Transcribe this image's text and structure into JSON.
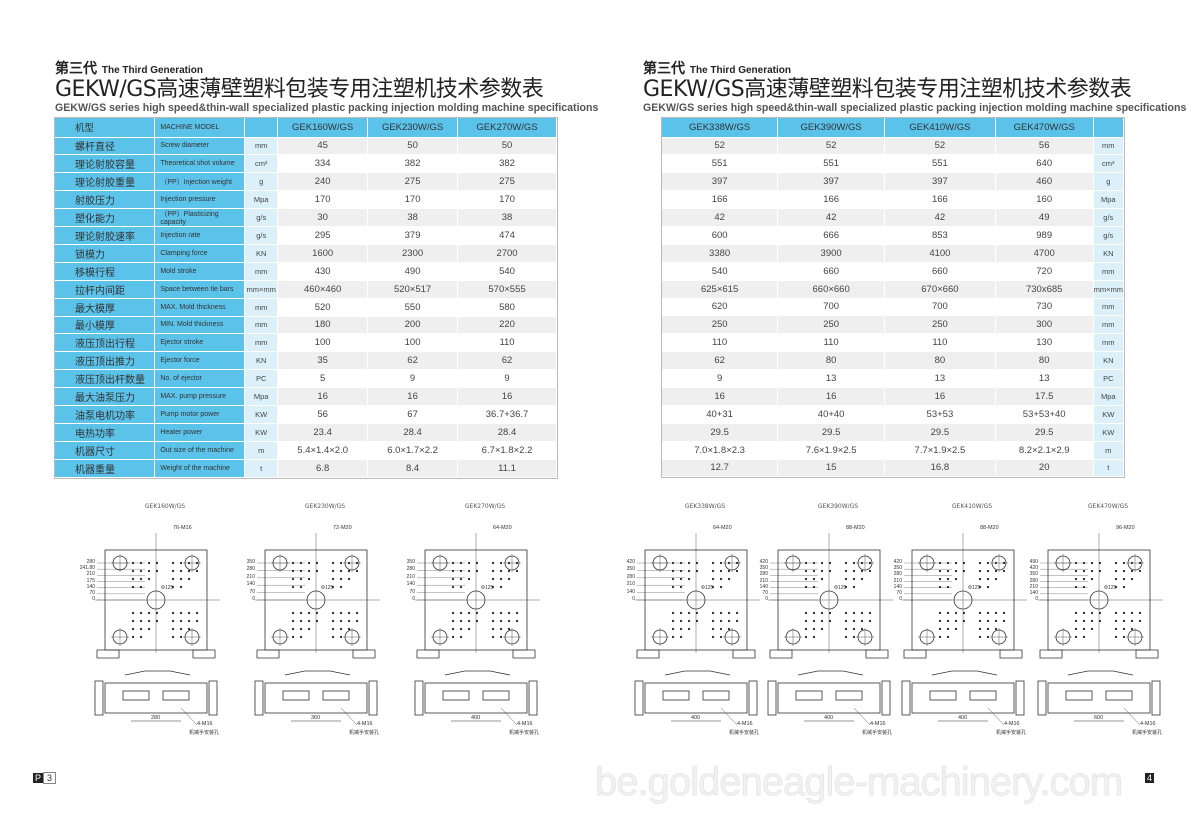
{
  "header": {
    "generation_zh": "第三代",
    "generation_en": "The Third Generation",
    "title": "GEKW/GS高速薄壁塑料包装专用注塑机技术参数表",
    "subtitle": "GEKW/GS series high speed&thin-wall specialized plastic packing injection molding machine specifications"
  },
  "left_table": {
    "header": {
      "zh": "机型",
      "en": "MACHINE MODEL",
      "unit": "",
      "models": [
        "GEK160W/GS",
        "GEK230W/GS",
        "GEK270W/GS"
      ]
    },
    "rows": [
      {
        "zh": "螺杆直径",
        "en": "Screw diameter",
        "unit": "mm",
        "values": [
          "45",
          "50",
          "50"
        ]
      },
      {
        "zh": "理论射胶容量",
        "en": "Theoretical shot volume",
        "unit": "cm³",
        "values": [
          "334",
          "382",
          "382"
        ]
      },
      {
        "zh": "理论射胶重量",
        "en": "（PP）Injection weight",
        "unit": "g",
        "values": [
          "240",
          "275",
          "275"
        ]
      },
      {
        "zh": "射胶压力",
        "en": "Injection pressure",
        "unit": "Mpa",
        "values": [
          "170",
          "170",
          "170"
        ]
      },
      {
        "zh": "塑化能力",
        "en": "（PP）Plasticizing capacity",
        "unit": "g/s",
        "values": [
          "30",
          "38",
          "38"
        ]
      },
      {
        "zh": "理论射胶速率",
        "en": "Injection rate",
        "unit": "g/s",
        "values": [
          "295",
          "379",
          "474"
        ]
      },
      {
        "zh": "锁模力",
        "en": "Clamping force",
        "unit": "KN",
        "values": [
          "1600",
          "2300",
          "2700"
        ]
      },
      {
        "zh": "移模行程",
        "en": "Mold stroke",
        "unit": "mm",
        "values": [
          "430",
          "490",
          "540"
        ]
      },
      {
        "zh": "拉杆内间距",
        "en": "Space between tie bars",
        "unit": "mm×mm",
        "values": [
          "460×460",
          "520×517",
          "570×555"
        ]
      },
      {
        "zh": "最大模厚",
        "en": "MAX. Mold thickness",
        "unit": "mm",
        "values": [
          "520",
          "550",
          "580"
        ]
      },
      {
        "zh": "最小模厚",
        "en": "MIN. Mold thickness",
        "unit": "mm",
        "values": [
          "180",
          "200",
          "220"
        ]
      },
      {
        "zh": "液压顶出行程",
        "en": "Ejector stroke",
        "unit": "mm",
        "values": [
          "100",
          "100",
          "110"
        ]
      },
      {
        "zh": "液压顶出推力",
        "en": "Ejector force",
        "unit": "KN",
        "values": [
          "35",
          "62",
          "62"
        ]
      },
      {
        "zh": "液压顶出杆数量",
        "en": "No. of ejector",
        "unit": "PC",
        "values": [
          "5",
          "9",
          "9"
        ]
      },
      {
        "zh": "最大油泵压力",
        "en": "MAX. pump pressure",
        "unit": "Mpa",
        "values": [
          "16",
          "16",
          "16"
        ]
      },
      {
        "zh": "油泵电机功率",
        "en": "Pump motor power",
        "unit": "KW",
        "values": [
          "56",
          "67",
          "36.7+36.7"
        ]
      },
      {
        "zh": "电热功率",
        "en": "Heater power",
        "unit": "KW",
        "values": [
          "23.4",
          "28.4",
          "28.4"
        ]
      },
      {
        "zh": "机器尺寸",
        "en": "Out size of the machine",
        "unit": "m",
        "values": [
          "5.4×1.4×2.0",
          "6.0×1.7×2.2",
          "6.7×1.8×2.2"
        ]
      },
      {
        "zh": "机器重量",
        "en": "Weight of the machine",
        "unit": "t",
        "values": [
          "6.8",
          "8.4",
          "11.1"
        ]
      }
    ]
  },
  "right_table": {
    "header": {
      "models": [
        "GEK338W/GS",
        "GEK390W/GS",
        "GEK410W/GS",
        "GEK470W/GS"
      ],
      "unit": ""
    },
    "rows": [
      {
        "values": [
          "52",
          "52",
          "52",
          "56"
        ],
        "unit": "mm"
      },
      {
        "values": [
          "551",
          "551",
          "551",
          "640"
        ],
        "unit": "cm³"
      },
      {
        "values": [
          "397",
          "397",
          "397",
          "460"
        ],
        "unit": "g"
      },
      {
        "values": [
          "166",
          "166",
          "166",
          "160"
        ],
        "unit": "Mpa"
      },
      {
        "values": [
          "42",
          "42",
          "42",
          "49"
        ],
        "unit": "g/s"
      },
      {
        "values": [
          "600",
          "666",
          "853",
          "989"
        ],
        "unit": "g/s"
      },
      {
        "values": [
          "3380",
          "3900",
          "4100",
          "4700"
        ],
        "unit": "KN"
      },
      {
        "values": [
          "540",
          "660",
          "660",
          "720"
        ],
        "unit": "mm"
      },
      {
        "values": [
          "625×615",
          "660×660",
          "670×660",
          "730x685"
        ],
        "unit": "mm×mm"
      },
      {
        "values": [
          "620",
          "700",
          "700",
          "730"
        ],
        "unit": "mm"
      },
      {
        "values": [
          "250",
          "250",
          "250",
          "300"
        ],
        "unit": "mm"
      },
      {
        "values": [
          "110",
          "110",
          "110",
          "130"
        ],
        "unit": "mm"
      },
      {
        "values": [
          "62",
          "80",
          "80",
          "80"
        ],
        "unit": "KN"
      },
      {
        "values": [
          "9",
          "13",
          "13",
          "13"
        ],
        "unit": "PC"
      },
      {
        "values": [
          "16",
          "16",
          "16",
          "17.5"
        ],
        "unit": "Mpa"
      },
      {
        "values": [
          "40+31",
          "40+40",
          "53+53",
          "53+53+40"
        ],
        "unit": "KW"
      },
      {
        "values": [
          "29.5",
          "29.5",
          "29.5",
          "29.5"
        ],
        "unit": "KW"
      },
      {
        "values": [
          "7.0×1.8×2.3",
          "7.6×1.9×2.5",
          "7.7×1.9×2.5",
          "8.2×2.1×2.9"
        ],
        "unit": "m"
      },
      {
        "values": [
          "12.7",
          "15",
          "16.8",
          "20"
        ],
        "unit": "t"
      }
    ]
  },
  "drawings": [
    {
      "title": "GEK160W/GS",
      "holes": "76-M16",
      "center": "Φ125",
      "spacing": "280",
      "robot_holes": "4-M16",
      "robot_label": "机械手安装孔",
      "ticks": [
        "280",
        "241.80",
        "210",
        "175",
        "140",
        "70",
        "0"
      ]
    },
    {
      "title": "GEK230W/GS",
      "holes": "72-M20",
      "center": "Φ125",
      "spacing": "360",
      "robot_holes": "4-M16",
      "robot_label": "机械手安装孔",
      "ticks": [
        "350",
        "280",
        "210",
        "140",
        "70",
        "0"
      ]
    },
    {
      "title": "GEK270W/GS",
      "holes": "64-M20",
      "center": "Φ125",
      "spacing": "400",
      "robot_holes": "4-M16",
      "robot_label": "机械手安装孔",
      "ticks": [
        "350",
        "280",
        "210",
        "140",
        "70",
        "0"
      ]
    },
    {
      "title": "GEK338W/GS",
      "holes": "64-M20",
      "center": "Φ125",
      "spacing": "400",
      "robot_holes": "4-M16",
      "robot_label": "机械手安装孔",
      "ticks": [
        "420",
        "350",
        "280",
        "210",
        "140",
        "0"
      ]
    },
    {
      "title": "GEK390W/GS",
      "holes": "88-M20",
      "center": "Φ125",
      "spacing": "400",
      "robot_holes": "4-M16",
      "robot_label": "机械手安装孔",
      "ticks": [
        "420",
        "350",
        "280",
        "210",
        "140",
        "70",
        "0"
      ]
    },
    {
      "title": "GEK410W/GS",
      "holes": "88-M20",
      "center": "Φ125",
      "spacing": "400",
      "robot_holes": "4-M16",
      "robot_label": "机械手安装孔",
      "ticks": [
        "420",
        "350",
        "280",
        "210",
        "140",
        "70",
        "0"
      ]
    },
    {
      "title": "GEK470W/GS",
      "holes": "96-M20",
      "center": "Φ125",
      "spacing": "600",
      "robot_holes": "4-M16",
      "robot_label": "机械手安装孔",
      "ticks": [
        "490",
        "420",
        "350",
        "280",
        "210",
        "140",
        "0"
      ]
    }
  ],
  "footer": {
    "left_page_prefix": "P",
    "left_page": "3",
    "right_page": "4",
    "watermark": "be.goldeneagle-machinery.com"
  },
  "colors": {
    "header_blue": "#5bc2ea",
    "unit_col": "#dcf0fa",
    "row_alt": "#efefef"
  }
}
